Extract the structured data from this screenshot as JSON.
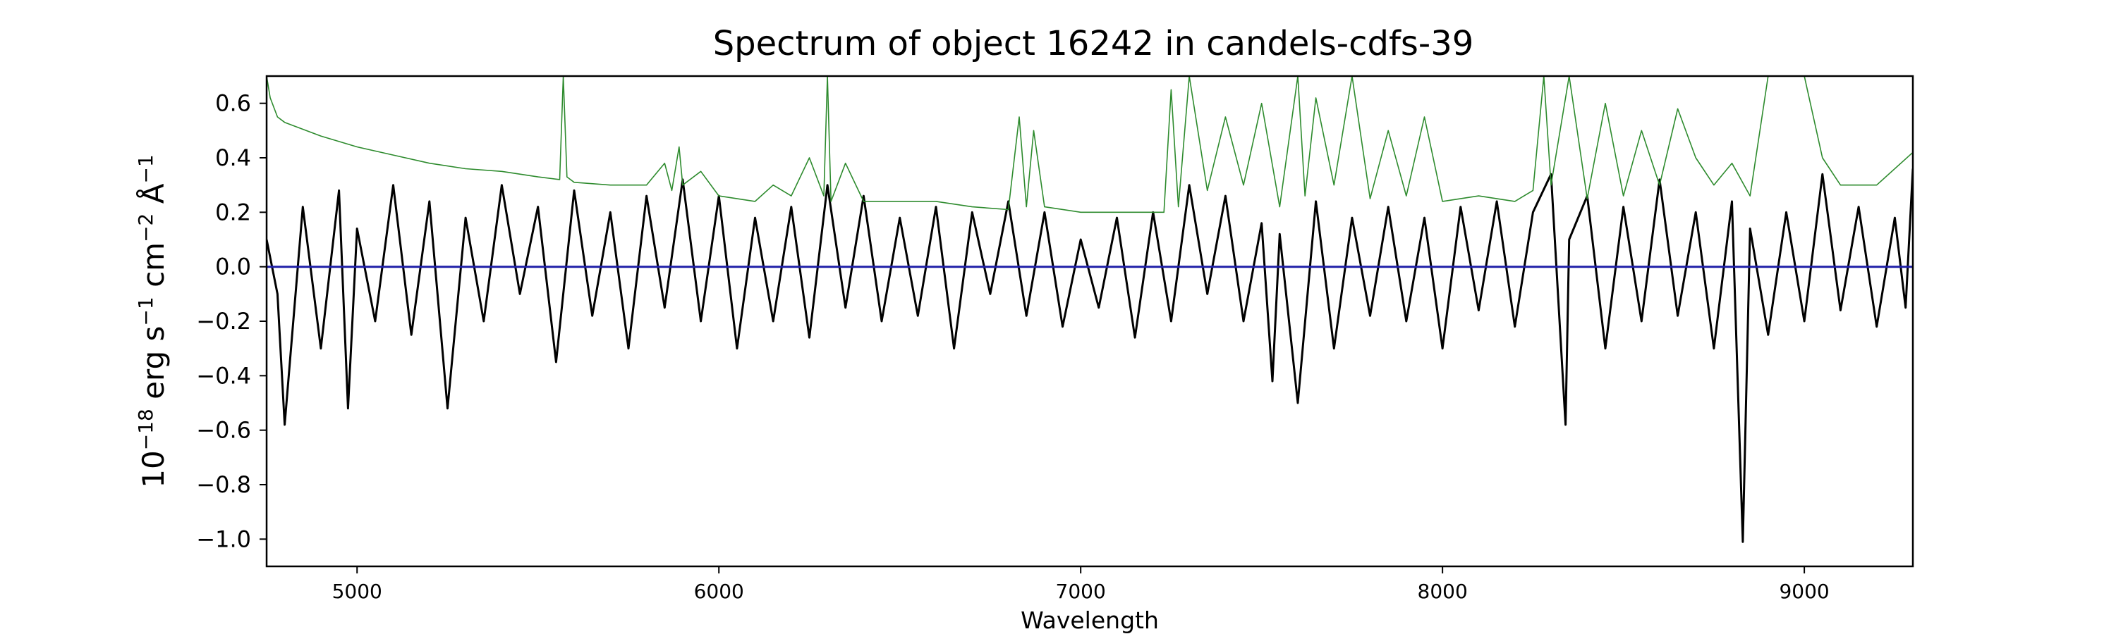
{
  "chart_data": {
    "type": "line",
    "title": "Spectrum of object 16242 in candels-cdfs-39",
    "xlabel": "Wavelength",
    "ylabel_base": "10",
    "ylabel_exp": "−18",
    "ylabel_unit_1": " erg s",
    "ylabel_exp_2": "−1",
    "ylabel_unit_2": " cm",
    "ylabel_exp_3": "−2",
    "ylabel_unit_3": " Å",
    "ylabel_exp_4": "−1",
    "xlim": [
      4750,
      9300
    ],
    "ylim": [
      -1.1,
      0.7
    ],
    "xticks": [
      5000,
      6000,
      7000,
      8000,
      9000
    ],
    "xtick_labels": [
      "5000",
      "6000",
      "7000",
      "8000",
      "9000"
    ],
    "yticks": [
      0.6,
      0.4,
      0.2,
      0.0,
      -0.2,
      -0.4,
      -0.6,
      -0.8,
      -1.0
    ],
    "ytick_labels": [
      "0.6",
      "0.4",
      "0.2",
      "0.0",
      "−0.2",
      "−0.4",
      "−0.6",
      "−0.8",
      "−1.0"
    ],
    "grid": false,
    "series": [
      {
        "color": "#000000",
        "x": [
          4750,
          4780,
          4800,
          4850,
          4900,
          4950,
          4975,
          5000,
          5050,
          5100,
          5150,
          5200,
          5250,
          5300,
          5350,
          5400,
          5450,
          5500,
          5550,
          5600,
          5650,
          5700,
          5750,
          5800,
          5850,
          5900,
          5950,
          6000,
          6050,
          6100,
          6150,
          6200,
          6250,
          6300,
          6350,
          6400,
          6450,
          6500,
          6550,
          6600,
          6650,
          6700,
          6750,
          6800,
          6850,
          6900,
          6950,
          7000,
          7050,
          7100,
          7150,
          7200,
          7250,
          7300,
          7350,
          7400,
          7450,
          7500,
          7530,
          7550,
          7600,
          7650,
          7700,
          7750,
          7800,
          7850,
          7900,
          7950,
          8000,
          8050,
          8100,
          8150,
          8200,
          8250,
          8300,
          8340,
          8350,
          8400,
          8450,
          8500,
          8550,
          8600,
          8650,
          8700,
          8750,
          8800,
          8830,
          8850,
          8900,
          8950,
          9000,
          9050,
          9100,
          9150,
          9200,
          9250,
          9280,
          9300
        ],
        "y": [
          0.1,
          -0.1,
          -0.58,
          0.22,
          -0.3,
          0.28,
          -0.52,
          0.14,
          -0.2,
          0.3,
          -0.25,
          0.24,
          -0.52,
          0.18,
          -0.2,
          0.3,
          -0.1,
          0.22,
          -0.35,
          0.28,
          -0.18,
          0.2,
          -0.3,
          0.26,
          -0.15,
          0.32,
          -0.2,
          0.26,
          -0.3,
          0.18,
          -0.2,
          0.22,
          -0.26,
          0.3,
          -0.15,
          0.26,
          -0.2,
          0.18,
          -0.18,
          0.22,
          -0.3,
          0.2,
          -0.1,
          0.24,
          -0.18,
          0.2,
          -0.22,
          0.1,
          -0.15,
          0.18,
          -0.26,
          0.2,
          -0.2,
          0.3,
          -0.1,
          0.26,
          -0.2,
          0.16,
          -0.42,
          0.12,
          -0.5,
          0.24,
          -0.3,
          0.18,
          -0.18,
          0.22,
          -0.2,
          0.18,
          -0.3,
          0.22,
          -0.16,
          0.24,
          -0.22,
          0.2,
          0.34,
          -0.58,
          0.1,
          0.26,
          -0.3,
          0.22,
          -0.2,
          0.32,
          -0.18,
          0.2,
          -0.3,
          0.24,
          -1.01,
          0.14,
          -0.25,
          0.2,
          -0.2,
          0.34,
          -0.16,
          0.22,
          -0.22,
          0.18,
          -0.15,
          0.36
        ]
      },
      {
        "color": "#2e8b2e",
        "x": [
          4750,
          4760,
          4780,
          4800,
          4900,
          5000,
          5100,
          5200,
          5300,
          5400,
          5500,
          5560,
          5570,
          5580,
          5600,
          5700,
          5800,
          5850,
          5870,
          5890,
          5900,
          5950,
          6000,
          6100,
          6150,
          6200,
          6250,
          6290,
          6300,
          6310,
          6350,
          6400,
          6500,
          6600,
          6700,
          6800,
          6830,
          6850,
          6870,
          6900,
          7000,
          7100,
          7200,
          7230,
          7250,
          7270,
          7300,
          7350,
          7400,
          7450,
          7500,
          7550,
          7600,
          7620,
          7650,
          7700,
          7750,
          7800,
          7850,
          7900,
          7950,
          8000,
          8100,
          8200,
          8250,
          8280,
          8300,
          8350,
          8400,
          8450,
          8500,
          8550,
          8600,
          8650,
          8700,
          8750,
          8800,
          8850,
          8900,
          8950,
          9000,
          9050,
          9100,
          9200,
          9300
        ],
        "y": [
          0.7,
          0.62,
          0.55,
          0.53,
          0.48,
          0.44,
          0.41,
          0.38,
          0.36,
          0.35,
          0.33,
          0.32,
          0.7,
          0.33,
          0.31,
          0.3,
          0.3,
          0.38,
          0.28,
          0.44,
          0.3,
          0.35,
          0.26,
          0.24,
          0.3,
          0.26,
          0.4,
          0.26,
          0.7,
          0.24,
          0.38,
          0.24,
          0.24,
          0.24,
          0.22,
          0.21,
          0.55,
          0.22,
          0.5,
          0.22,
          0.2,
          0.2,
          0.2,
          0.2,
          0.65,
          0.22,
          0.7,
          0.28,
          0.55,
          0.3,
          0.6,
          0.22,
          0.7,
          0.26,
          0.62,
          0.3,
          0.7,
          0.25,
          0.5,
          0.26,
          0.55,
          0.24,
          0.26,
          0.24,
          0.28,
          0.7,
          0.3,
          0.7,
          0.25,
          0.6,
          0.26,
          0.5,
          0.3,
          0.58,
          0.4,
          0.3,
          0.38,
          0.26,
          0.7,
          0.7,
          0.7,
          0.4,
          0.3,
          0.3,
          0.42
        ]
      },
      {
        "color": "#1f1fa8",
        "x": [
          4750,
          9300
        ],
        "y": [
          0.0,
          0.0
        ]
      }
    ]
  }
}
